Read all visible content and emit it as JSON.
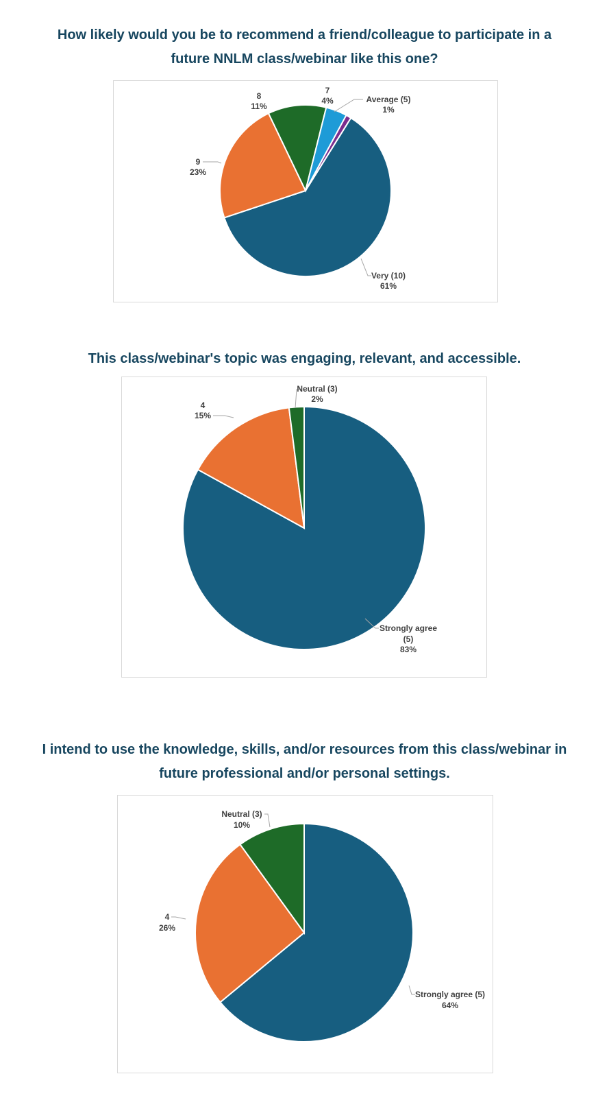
{
  "colors": {
    "title": "#17465f",
    "dark_blue": "#175e80",
    "orange": "#e97132",
    "green": "#1e6b28",
    "light_blue": "#1e9bd7",
    "purple": "#7b2d8e",
    "leader": "#a6a6a6",
    "label": "#404040",
    "border": "#d9d9d9"
  },
  "charts": [
    {
      "title_line1": "How likely would you be to recommend a friend/colleague to participate in a",
      "title_line2": "future NNLM class/webinar like this one?"
    },
    {
      "title_line1": "This class/webinar's topic was engaging, relevant, and accessible."
    },
    {
      "title_line1": "I intend to use the knowledge, skills, and/or resources from this class/webinar in",
      "title_line2": "future professional and/or personal settings."
    }
  ],
  "chart_data": [
    {
      "type": "pie",
      "title": "How likely would you be to recommend a friend/colleague to participate in a future NNLM class/webinar like this one?",
      "categories": [
        "Very (10)",
        "9",
        "8",
        "7",
        "Average (5)"
      ],
      "values": [
        61,
        23,
        11,
        4,
        1
      ],
      "unit": "%",
      "colors": [
        "#175e80",
        "#e97132",
        "#1e6b28",
        "#1e9bd7",
        "#7b2d8e"
      ],
      "labels": [
        {
          "name": "Very (10)",
          "pct": "61%"
        },
        {
          "name": "9",
          "pct": "23%"
        },
        {
          "name": "8",
          "pct": "11%"
        },
        {
          "name": "7",
          "pct": "4%"
        },
        {
          "name": "Average (5)",
          "pct": "1%"
        }
      ]
    },
    {
      "type": "pie",
      "title": "This class/webinar's topic was engaging, relevant, and accessible.",
      "categories": [
        "Strongly agree (5)",
        "4",
        "Neutral (3)"
      ],
      "values": [
        83,
        15,
        2
      ],
      "unit": "%",
      "colors": [
        "#175e80",
        "#e97132",
        "#1e6b28"
      ],
      "labels": [
        {
          "name_l1": "Strongly agree",
          "name_l2": "(5)",
          "pct": "83%"
        },
        {
          "name": "4",
          "pct": "15%"
        },
        {
          "name": "Neutral (3)",
          "pct": "2%"
        }
      ]
    },
    {
      "type": "pie",
      "title": "I intend to use the knowledge, skills, and/or resources from this class/webinar in future professional and/or personal settings.",
      "categories": [
        "Strongly agree (5)",
        "4",
        "Neutral (3)"
      ],
      "values": [
        64,
        26,
        10
      ],
      "unit": "%",
      "colors": [
        "#175e80",
        "#e97132",
        "#1e6b28"
      ],
      "labels": [
        {
          "name": "Strongly agree (5)",
          "pct": "64%"
        },
        {
          "name": "4",
          "pct": "26%"
        },
        {
          "name": "Neutral (3)",
          "pct": "10%"
        }
      ]
    }
  ]
}
